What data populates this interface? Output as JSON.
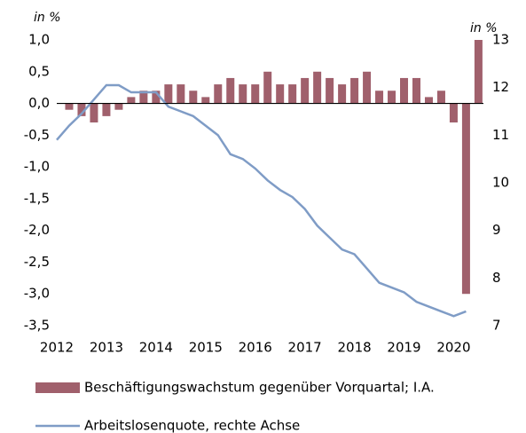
{
  "chart_data": {
    "type": "bar-line",
    "ylabel": "in %",
    "y2label": "in %",
    "xlim": [
      2012,
      2020.6
    ],
    "xticks": [
      2012,
      2013,
      2014,
      2015,
      2016,
      2017,
      2018,
      2019,
      2020
    ],
    "ylim": [
      -3.5,
      1.0
    ],
    "yticks": [
      {
        "value": -3.5,
        "label": "-3,5"
      },
      {
        "value": -3.0,
        "label": "-3,0"
      },
      {
        "value": -2.5,
        "label": "-2,5"
      },
      {
        "value": -2.0,
        "label": "-2,0"
      },
      {
        "value": -1.5,
        "label": "-1,5"
      },
      {
        "value": -1.0,
        "label": "-1,0"
      },
      {
        "value": -0.5,
        "label": "-0,5"
      },
      {
        "value": 0,
        "label": "0,0"
      },
      {
        "value": 0.5,
        "label": "0,5"
      },
      {
        "value": 1.0,
        "label": "1,0"
      }
    ],
    "y2lim": [
      7,
      13
    ],
    "y2ticks": [
      7,
      8,
      9,
      10,
      11,
      12,
      13
    ],
    "series": [
      {
        "name": "Beschäftigungswachstum gegenüber Vorquartal; I.A.",
        "type": "bar",
        "color": "#a0606c",
        "x": [
          2012.25,
          2012.5,
          2012.75,
          2013,
          2013.25,
          2013.5,
          2013.75,
          2014,
          2014.25,
          2014.5,
          2014.75,
          2015,
          2015.25,
          2015.5,
          2015.75,
          2016,
          2016.25,
          2016.5,
          2016.75,
          2017,
          2017.25,
          2017.5,
          2017.75,
          2018,
          2018.25,
          2018.5,
          2018.75,
          2019,
          2019.25,
          2019.5,
          2019.75,
          2020,
          2020.25,
          2020.5
        ],
        "values": [
          -0.1,
          -0.2,
          -0.3,
          -0.2,
          -0.1,
          0.1,
          0.2,
          0.2,
          0.3,
          0.3,
          0.2,
          0.1,
          0.3,
          0.4,
          0.3,
          0.3,
          0.5,
          0.3,
          0.3,
          0.4,
          0.5,
          0.4,
          0.3,
          0.4,
          0.5,
          0.2,
          0.2,
          0.4,
          0.4,
          0.1,
          0.2,
          -0.3,
          -3.0,
          1.0
        ]
      },
      {
        "name": "Arbeitslosenquote, rechte Achse",
        "type": "line",
        "axis": "y2",
        "color": "#7f9cc6",
        "x": [
          2012,
          2012.25,
          2012.5,
          2012.75,
          2013,
          2013.25,
          2013.5,
          2013.75,
          2014,
          2014.25,
          2014.5,
          2014.75,
          2015,
          2015.25,
          2015.5,
          2015.75,
          2016,
          2016.25,
          2016.5,
          2016.75,
          2017,
          2017.25,
          2017.5,
          2017.75,
          2018,
          2018.25,
          2018.5,
          2018.75,
          2019,
          2019.25,
          2019.5,
          2019.75,
          2020,
          2020.25
        ],
        "values": [
          10.9,
          11.2,
          11.45,
          11.75,
          12.05,
          12.05,
          11.9,
          11.9,
          11.9,
          11.6,
          11.5,
          11.4,
          11.2,
          11.0,
          10.6,
          10.5,
          10.3,
          10.05,
          9.85,
          9.7,
          9.45,
          9.1,
          8.85,
          8.6,
          8.5,
          8.2,
          7.9,
          7.8,
          7.7,
          7.5,
          7.4,
          7.3,
          7.2,
          7.3
        ]
      }
    ]
  }
}
